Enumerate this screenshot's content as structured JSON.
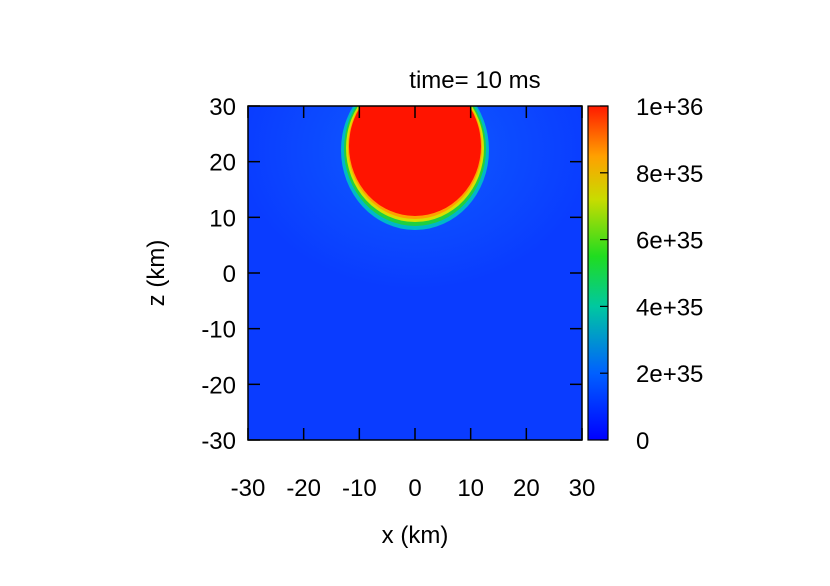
{
  "chart_data": {
    "type": "heatmap",
    "title": "time= 10 ms",
    "xlabel": "x (km)",
    "ylabel": "z (km)",
    "xlim": [
      -30,
      30
    ],
    "ylim": [
      -30,
      30
    ],
    "xticks": [
      "-30",
      "-20",
      "-10",
      "0",
      "10",
      "20",
      "30"
    ],
    "yticks": [
      "30",
      "20",
      "10",
      "0",
      "-10",
      "-20",
      "-30"
    ],
    "colorbar": {
      "range": [
        0,
        1e+36
      ],
      "ticks": [
        "1e+36",
        "8e+35",
        "6e+35",
        "4e+35",
        "2e+35",
        "0"
      ],
      "colors": [
        "#0000ff",
        "#0060ff",
        "#00c8a0",
        "#20dc20",
        "#c8dc00",
        "#ffa000",
        "#ff2000"
      ]
    },
    "field": {
      "description_values": "saturated region (value >= 1e36) spans x from -12 to 12 km and z from 9 to 30 km; background near 1e35 with faint halo",
      "saturated_x_range": [
        -12,
        12
      ],
      "saturated_z_range": [
        9,
        30
      ],
      "background_value": 1e+35
    }
  }
}
